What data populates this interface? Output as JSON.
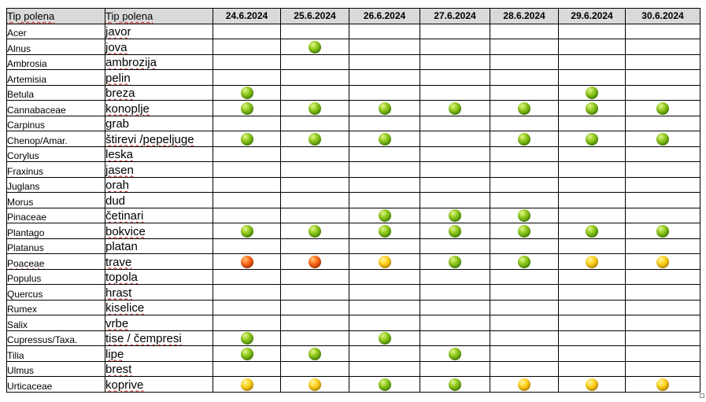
{
  "table": {
    "header_latin": "Tip polena",
    "header_local": "Tip polena",
    "dates": [
      "24.6.2024",
      "25.6.2024",
      "26.6.2024",
      "27.6.2024",
      "28.6.2024",
      "29.6.2024",
      "30.6.2024"
    ],
    "level_colors": {
      "green": "#7cbf16",
      "yellow": "#ffc90e",
      "orange": "#ff5a14"
    },
    "rows": [
      {
        "latin": "Acer",
        "local": "javor",
        "levels": [
          "",
          "",
          "",
          "",
          "",
          "",
          ""
        ]
      },
      {
        "latin": "Alnus",
        "local": "jova",
        "levels": [
          "",
          "green",
          "",
          "",
          "",
          "",
          ""
        ]
      },
      {
        "latin": "Ambrosia",
        "local": "ambrozija",
        "levels": [
          "",
          "",
          "",
          "",
          "",
          "",
          ""
        ]
      },
      {
        "latin": "Artemisia",
        "local": "pelin",
        "levels": [
          "",
          "",
          "",
          "",
          "",
          "",
          ""
        ]
      },
      {
        "latin": "Betula",
        "local": "breza",
        "levels": [
          "green",
          "",
          "",
          "",
          "",
          "green",
          ""
        ]
      },
      {
        "latin": "Cannabaceae",
        "local": "konoplje",
        "levels": [
          "green",
          "green",
          "green",
          "green",
          "green",
          "green",
          "green"
        ]
      },
      {
        "latin": "Carpinus",
        "local": "grab",
        "levels": [
          "",
          "",
          "",
          "",
          "",
          "",
          ""
        ]
      },
      {
        "latin": "Chenop/Amar.",
        "local": "štirevi /pepeljuge",
        "levels": [
          "green",
          "green",
          "green",
          "",
          "green",
          "green",
          "green"
        ]
      },
      {
        "latin": "Corylus",
        "local": "leska",
        "levels": [
          "",
          "",
          "",
          "",
          "",
          "",
          ""
        ]
      },
      {
        "latin": "Fraxinus",
        "local": "jasen",
        "levels": [
          "",
          "",
          "",
          "",
          "",
          "",
          ""
        ]
      },
      {
        "latin": "Juglans",
        "local": "orah",
        "levels": [
          "",
          "",
          "",
          "",
          "",
          "",
          ""
        ]
      },
      {
        "latin": "Morus",
        "local": "dud",
        "levels": [
          "",
          "",
          "",
          "",
          "",
          "",
          ""
        ]
      },
      {
        "latin": "Pinaceae",
        "local": "četinari",
        "levels": [
          "",
          "",
          "green",
          "green",
          "green",
          "",
          ""
        ]
      },
      {
        "latin": "Plantago",
        "local": "bokvice",
        "levels": [
          "green",
          "green",
          "green",
          "green",
          "green",
          "green",
          "green"
        ]
      },
      {
        "latin": "Platanus",
        "local": "platan",
        "levels": [
          "",
          "",
          "",
          "",
          "",
          "",
          ""
        ]
      },
      {
        "latin": "Poaceae",
        "local": "trave",
        "levels": [
          "orange",
          "orange",
          "yellow",
          "green",
          "green",
          "yellow",
          "yellow"
        ]
      },
      {
        "latin": "Populus",
        "local": "topola",
        "levels": [
          "",
          "",
          "",
          "",
          "",
          "",
          ""
        ]
      },
      {
        "latin": "Quercus",
        "local": "hrast",
        "levels": [
          "",
          "",
          "",
          "",
          "",
          "",
          ""
        ]
      },
      {
        "latin": "Rumex",
        "local": "kiselice",
        "levels": [
          "",
          "",
          "",
          "",
          "",
          "",
          ""
        ]
      },
      {
        "latin": "Salix",
        "local": "vrbe",
        "levels": [
          "",
          "",
          "",
          "",
          "",
          "",
          ""
        ]
      },
      {
        "latin": "Cupressus/Taxa.",
        "local": "tise / čempresi",
        "levels": [
          "green",
          "",
          "green",
          "",
          "",
          "",
          ""
        ]
      },
      {
        "latin": "Tilia",
        "local": "lipe",
        "levels": [
          "green",
          "green",
          "",
          "green",
          "",
          "",
          ""
        ]
      },
      {
        "latin": "Ulmus",
        "local": "brest",
        "levels": [
          "",
          "",
          "",
          "",
          "",
          "",
          ""
        ]
      },
      {
        "latin": "Urticaceae",
        "local": "koprive",
        "levels": [
          "yellow",
          "yellow",
          "green",
          "green",
          "yellow",
          "yellow",
          "yellow"
        ]
      }
    ]
  }
}
